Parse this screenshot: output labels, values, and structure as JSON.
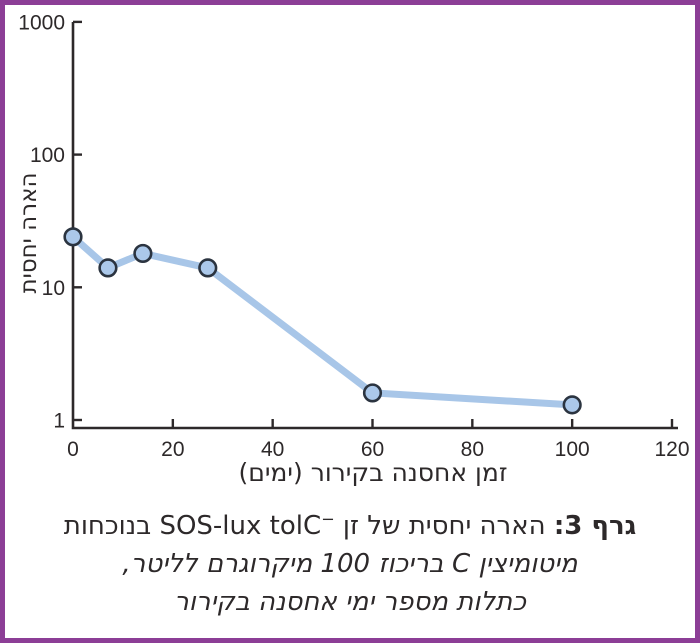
{
  "frame_color": "#8c3e96",
  "chart_data": {
    "type": "line",
    "title": "",
    "xlabel": "זמן אחסנה בקירור (ימים)",
    "ylabel": "הארה יחסית",
    "x_ticks": [
      0,
      20,
      40,
      60,
      80,
      100,
      120
    ],
    "y_ticks": [
      1,
      10,
      100,
      1000
    ],
    "y_scale": "log",
    "xlim": [
      0,
      120
    ],
    "ylim": [
      1,
      1000
    ],
    "grid": false,
    "legend": "none",
    "points": [
      {
        "x": 0,
        "y": 24
      },
      {
        "x": 7,
        "y": 14
      },
      {
        "x": 14,
        "y": 18
      },
      {
        "x": 27,
        "y": 14
      },
      {
        "x": 60,
        "y": 1.6
      },
      {
        "x": 100,
        "y": 1.3
      }
    ],
    "line_color": "#a8c6e8",
    "marker_fill": "#abc8ea",
    "marker_stroke": "#2b3440",
    "axis_color": "#2d292a"
  },
  "caption": {
    "line1_bold": "גרף 3:",
    "line1_a": " הארה יחסית של זן ",
    "line1_latin": "SOS-lux tolC",
    "line1_sup": "−",
    "line1_b": " בנוכחות",
    "line2": "מיטומיצין C בריכוז 100 מיקרוגרם לליטר,",
    "line3": "כתלות מספר ימי אחסנה בקירור"
  }
}
